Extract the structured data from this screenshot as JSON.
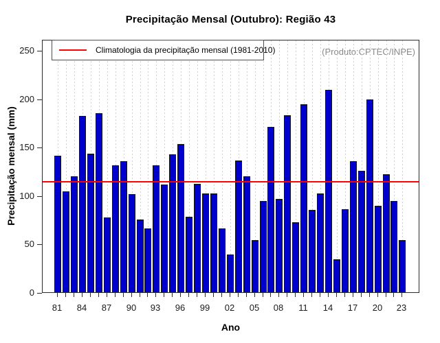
{
  "colors": {
    "bar_fill": "#0000cc",
    "bar_border": "#141414",
    "climatology_line": "#ff0000",
    "gridline": "#cfcfcf",
    "plot_border": "#2b2b2b",
    "note_text": "#8a8a8a"
  },
  "chart_data": {
    "type": "bar",
    "title": "Precipitação Mensal (Outubro): Região 43",
    "xlabel": "Ano",
    "ylabel": "Precipitação mensal (mm)",
    "annotation": "(Produto:CPTEC/INPE)",
    "legend_label": "Climatologia da precipitação mensal (1981-2010)",
    "legend_position": "top-left",
    "grid": "vertical-dashed",
    "ylim": [
      0,
      250
    ],
    "yticks": [
      0,
      50,
      100,
      150,
      200,
      250
    ],
    "xtick_labels": [
      "81",
      "84",
      "87",
      "90",
      "93",
      "96",
      "99",
      "02",
      "05",
      "08",
      "11",
      "14",
      "17",
      "20",
      "23"
    ],
    "categories": [
      "81",
      "82",
      "83",
      "84",
      "85",
      "86",
      "87",
      "88",
      "89",
      "90",
      "91",
      "92",
      "93",
      "94",
      "95",
      "96",
      "97",
      "98",
      "99",
      "00",
      "01",
      "02",
      "03",
      "04",
      "05",
      "06",
      "07",
      "08",
      "09",
      "10",
      "11",
      "12",
      "13",
      "14",
      "15",
      "16",
      "17",
      "18",
      "19",
      "20",
      "21",
      "22",
      "23"
    ],
    "values": [
      141,
      104,
      120,
      182,
      143,
      185,
      77,
      131,
      135,
      101,
      75,
      66,
      131,
      111,
      142,
      153,
      78,
      112,
      102,
      102,
      66,
      39,
      136,
      120,
      54,
      94,
      171,
      96,
      183,
      72,
      194,
      85,
      102,
      209,
      34,
      86,
      135,
      125,
      199,
      89,
      122,
      94,
      54
    ],
    "climatology": 114
  }
}
